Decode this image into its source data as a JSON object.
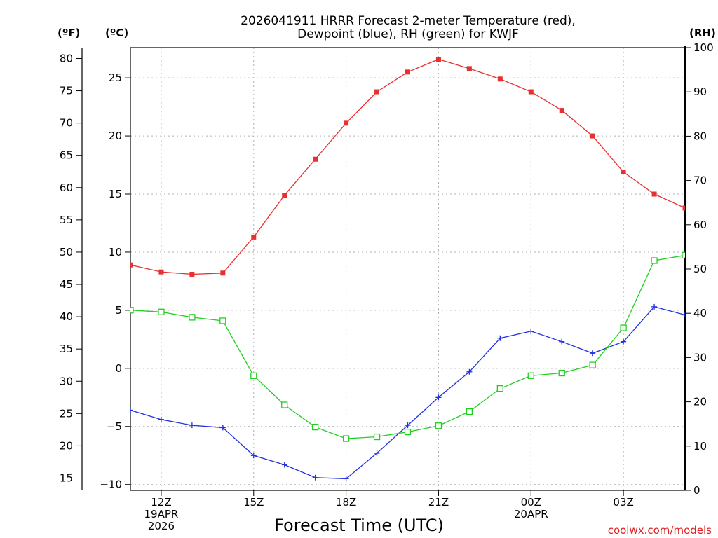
{
  "chart_data": {
    "type": "line",
    "title_line1": "2026041911 HRRR Forecast 2-meter Temperature (red),",
    "title_line2": "Dewpoint (blue), RH (green) for KWJF",
    "xlabel": "Forecast Time (UTC)",
    "credit": "coolwx.com/models",
    "unit_labels": {
      "fahrenheit": "(ºF)",
      "celsius": "(ºC)",
      "rh": "(RH)"
    },
    "x_hours": [
      11,
      12,
      13,
      14,
      15,
      16,
      17,
      18,
      19,
      20,
      21,
      22,
      23,
      24,
      25,
      26,
      27,
      28,
      29
    ],
    "xlim": [
      11,
      29
    ],
    "x_ticks": [
      {
        "hour": 12,
        "line1": "12Z",
        "line2": "19APR",
        "line3": "2026"
      },
      {
        "hour": 15,
        "line1": "15Z",
        "line2": "",
        "line3": ""
      },
      {
        "hour": 18,
        "line1": "18Z",
        "line2": "",
        "line3": ""
      },
      {
        "hour": 21,
        "line1": "21Z",
        "line2": "",
        "line3": ""
      },
      {
        "hour": 24,
        "line1": "00Z",
        "line2": "20APR",
        "line3": ""
      },
      {
        "hour": 27,
        "line1": "03Z",
        "line2": "",
        "line3": ""
      }
    ],
    "celsius_axis": {
      "ylim": [
        -10.5,
        27.6
      ],
      "ticks": [
        -10,
        -5,
        0,
        5,
        10,
        15,
        20,
        25
      ]
    },
    "fahrenheit_ticks": [
      15,
      20,
      25,
      30,
      35,
      40,
      45,
      50,
      55,
      60,
      65,
      70,
      75,
      80
    ],
    "rh_axis": {
      "ylim": [
        0,
        100
      ],
      "ticks": [
        0,
        10,
        20,
        30,
        40,
        50,
        60,
        70,
        80,
        90,
        100
      ]
    },
    "series": [
      {
        "name": "Temperature",
        "axis": "celsius",
        "color": "#e83030",
        "marker": "filled-square",
        "values": [
          8.9,
          8.3,
          8.1,
          8.2,
          11.3,
          14.9,
          18.0,
          21.1,
          23.8,
          25.5,
          26.6,
          25.8,
          24.9,
          23.8,
          22.2,
          20.0,
          16.9,
          15.0,
          13.8
        ]
      },
      {
        "name": "Dewpoint",
        "axis": "celsius",
        "color": "#2030e0",
        "marker": "plus",
        "values": [
          -3.6,
          -4.4,
          -4.9,
          -5.1,
          -7.5,
          -8.3,
          -9.4,
          -9.5,
          -7.3,
          -4.9,
          -2.5,
          -0.3,
          2.6,
          3.2,
          2.3,
          1.3,
          2.3,
          5.3,
          4.6
        ]
      },
      {
        "name": "RH",
        "axis": "rh",
        "color": "#20d020",
        "marker": "open-square",
        "values": [
          40.7,
          40.3,
          39.1,
          38.3,
          25.9,
          19.3,
          14.3,
          11.7,
          12.1,
          13.2,
          14.6,
          17.8,
          23.0,
          25.9,
          26.5,
          28.3,
          36.7,
          51.9,
          53.1
        ]
      }
    ]
  }
}
